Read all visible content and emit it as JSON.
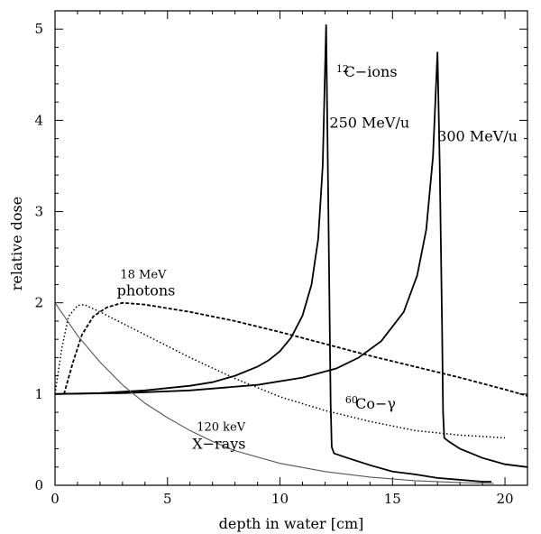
{
  "chart_data": {
    "type": "line",
    "title": "",
    "xlabel": "depth in water [cm]",
    "ylabel": "relative dose",
    "xlim": [
      0,
      21
    ],
    "ylim": [
      0,
      5.2
    ],
    "xticks": [
      0,
      5,
      10,
      15,
      20
    ],
    "yticks": [
      0,
      1,
      2,
      3,
      4,
      5
    ],
    "grid": false,
    "series": [
      {
        "style": "solid",
        "points": [
          [
            0,
            1.0
          ],
          [
            2,
            1.01
          ],
          [
            4,
            1.04
          ],
          [
            6,
            1.09
          ],
          [
            7,
            1.13
          ],
          [
            8,
            1.2
          ],
          [
            9,
            1.3
          ],
          [
            9.5,
            1.37
          ],
          [
            10,
            1.47
          ],
          [
            10.5,
            1.62
          ],
          [
            11,
            1.86
          ],
          [
            11.4,
            2.2
          ],
          [
            11.7,
            2.7
          ],
          [
            11.9,
            3.5
          ],
          [
            12.05,
            5.05
          ],
          [
            12.15,
            3.0
          ],
          [
            12.25,
            0.9
          ],
          [
            12.3,
            0.42
          ],
          [
            12.4,
            0.35
          ],
          [
            13,
            0.3
          ],
          [
            14,
            0.22
          ],
          [
            15,
            0.15
          ],
          [
            16,
            0.12
          ],
          [
            17,
            0.08
          ],
          [
            18,
            0.06
          ],
          [
            19,
            0.04
          ],
          [
            19.4,
            0.04
          ]
        ]
      },
      {
        "style": "solid",
        "points": [
          [
            0,
            1.0
          ],
          [
            3,
            1.01
          ],
          [
            6,
            1.04
          ],
          [
            9,
            1.1
          ],
          [
            11,
            1.18
          ],
          [
            12.5,
            1.28
          ],
          [
            13.5,
            1.4
          ],
          [
            14.5,
            1.58
          ],
          [
            15.5,
            1.9
          ],
          [
            16.1,
            2.3
          ],
          [
            16.5,
            2.8
          ],
          [
            16.8,
            3.6
          ],
          [
            17.0,
            4.75
          ],
          [
            17.1,
            3.5
          ],
          [
            17.2,
            1.8
          ],
          [
            17.25,
            0.8
          ],
          [
            17.3,
            0.52
          ],
          [
            17.5,
            0.48
          ],
          [
            18,
            0.4
          ],
          [
            19,
            0.3
          ],
          [
            20,
            0.23
          ],
          [
            21,
            0.2
          ]
        ]
      },
      {
        "style": "dashed",
        "points": [
          [
            0.4,
            1.0
          ],
          [
            0.8,
            1.35
          ],
          [
            1.2,
            1.65
          ],
          [
            1.7,
            1.85
          ],
          [
            2.3,
            1.95
          ],
          [
            3.0,
            2.0
          ],
          [
            4,
            1.98
          ],
          [
            6,
            1.9
          ],
          [
            8,
            1.8
          ],
          [
            10,
            1.68
          ],
          [
            12,
            1.55
          ],
          [
            14,
            1.42
          ],
          [
            16,
            1.3
          ],
          [
            18,
            1.18
          ],
          [
            20,
            1.05
          ],
          [
            21,
            0.98
          ]
        ]
      },
      {
        "style": "dotted",
        "points": [
          [
            0,
            1.0
          ],
          [
            0.3,
            1.5
          ],
          [
            0.6,
            1.85
          ],
          [
            1.0,
            1.97
          ],
          [
            1.3,
            1.98
          ],
          [
            2,
            1.9
          ],
          [
            4,
            1.65
          ],
          [
            6,
            1.4
          ],
          [
            8,
            1.17
          ],
          [
            10,
            0.97
          ],
          [
            12,
            0.82
          ],
          [
            14,
            0.7
          ],
          [
            16,
            0.6
          ],
          [
            18,
            0.55
          ],
          [
            20,
            0.52
          ]
        ]
      },
      {
        "style": "thin-gray",
        "points": [
          [
            0,
            2.0
          ],
          [
            1,
            1.64
          ],
          [
            2,
            1.35
          ],
          [
            3,
            1.1
          ],
          [
            4,
            0.9
          ],
          [
            5,
            0.74
          ],
          [
            6,
            0.6
          ],
          [
            7,
            0.48
          ],
          [
            8,
            0.38
          ],
          [
            10,
            0.24
          ],
          [
            12,
            0.15
          ],
          [
            14,
            0.09
          ],
          [
            16,
            0.05
          ],
          [
            18,
            0.03
          ],
          [
            19.5,
            0.02
          ]
        ]
      }
    ],
    "annotations": [
      {
        "id": "c12-sup",
        "text": "12",
        "x": 12.5,
        "y": 4.53
      },
      {
        "id": "c12",
        "text": "C−ions",
        "x": 12.85,
        "y": 4.48
      },
      {
        "id": "mev250",
        "text": "250 MeV/u",
        "x": 12.2,
        "y": 3.92
      },
      {
        "id": "mev300",
        "text": "300 MeV/u",
        "x": 17.0,
        "y": 3.77
      },
      {
        "id": "mev18",
        "text": "18 MeV",
        "x": 2.9,
        "y": 2.27
      },
      {
        "id": "photons",
        "text": "photons",
        "x": 2.75,
        "y": 2.08
      },
      {
        "id": "co-sup",
        "text": "60",
        "x": 12.9,
        "y": 0.9
      },
      {
        "id": "co",
        "text": "Co−γ",
        "x": 13.35,
        "y": 0.84
      },
      {
        "id": "kev120",
        "text": "120 keV",
        "x": 6.3,
        "y": 0.6
      },
      {
        "id": "xrays",
        "text": "X−rays",
        "x": 6.1,
        "y": 0.4
      }
    ]
  }
}
